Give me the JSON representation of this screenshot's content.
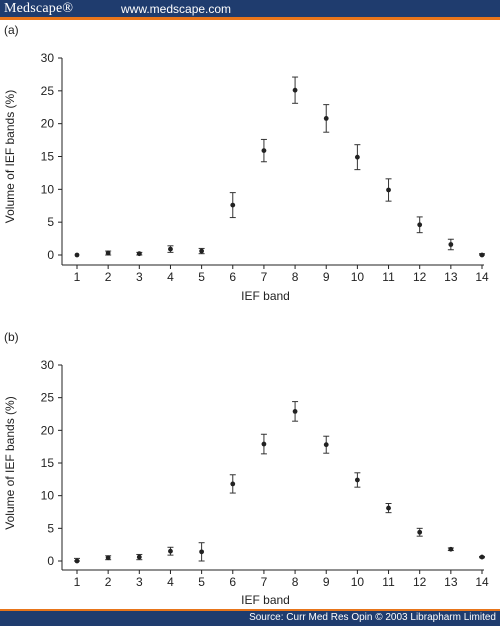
{
  "header": {
    "brand": "Medscape®",
    "url": "www.medscape.com"
  },
  "footer": {
    "source": "Source: Curr Med Res Opin © 2003 Librapharm Limited"
  },
  "colors": {
    "header_bg": "#1f3c6e",
    "accent": "#e8751a",
    "points": "#222222"
  },
  "chart_data": [
    {
      "type": "scatter",
      "panel_label": "(a)",
      "xlabel": "IEF band",
      "ylabel": "Volume of IEF bands (%)",
      "x": [
        1,
        2,
        3,
        4,
        5,
        6,
        7,
        8,
        9,
        10,
        11,
        12,
        13,
        14
      ],
      "y": [
        0,
        0.3,
        0.2,
        0.9,
        0.6,
        7.6,
        15.9,
        25.1,
        20.8,
        14.9,
        9.9,
        4.6,
        1.6,
        0
      ],
      "err": [
        0,
        0.3,
        0.2,
        0.5,
        0.4,
        1.9,
        1.7,
        2.0,
        2.1,
        1.9,
        1.7,
        1.2,
        0.8,
        0.2
      ],
      "xticks": [
        "1",
        "2",
        "3",
        "4",
        "5",
        "6",
        "7",
        "8",
        "9",
        "10",
        "11",
        "12",
        "13",
        "14"
      ],
      "yticks": [
        "0",
        "5",
        "10",
        "15",
        "20",
        "25",
        "30"
      ],
      "ylim": [
        0,
        30
      ],
      "grid": false
    },
    {
      "type": "scatter",
      "panel_label": "(b)",
      "xlabel": "IEF band",
      "ylabel": "Volume of IEF bands (%)",
      "x": [
        1,
        2,
        3,
        4,
        5,
        6,
        7,
        8,
        9,
        10,
        11,
        12,
        13,
        14
      ],
      "y": [
        0,
        0.5,
        0.6,
        1.5,
        1.4,
        11.8,
        17.9,
        22.9,
        17.8,
        12.4,
        8.1,
        4.4,
        1.8,
        0.6
      ],
      "err": [
        0.4,
        0.3,
        0.4,
        0.6,
        1.4,
        1.4,
        1.5,
        1.5,
        1.3,
        1.1,
        0.7,
        0.6,
        0.2,
        0.1
      ],
      "xticks": [
        "1",
        "2",
        "3",
        "4",
        "5",
        "6",
        "7",
        "8",
        "9",
        "10",
        "11",
        "12",
        "13",
        "14"
      ],
      "yticks": [
        "0",
        "5",
        "10",
        "15",
        "20",
        "25",
        "30"
      ],
      "ylim": [
        0,
        30
      ],
      "grid": false
    }
  ]
}
